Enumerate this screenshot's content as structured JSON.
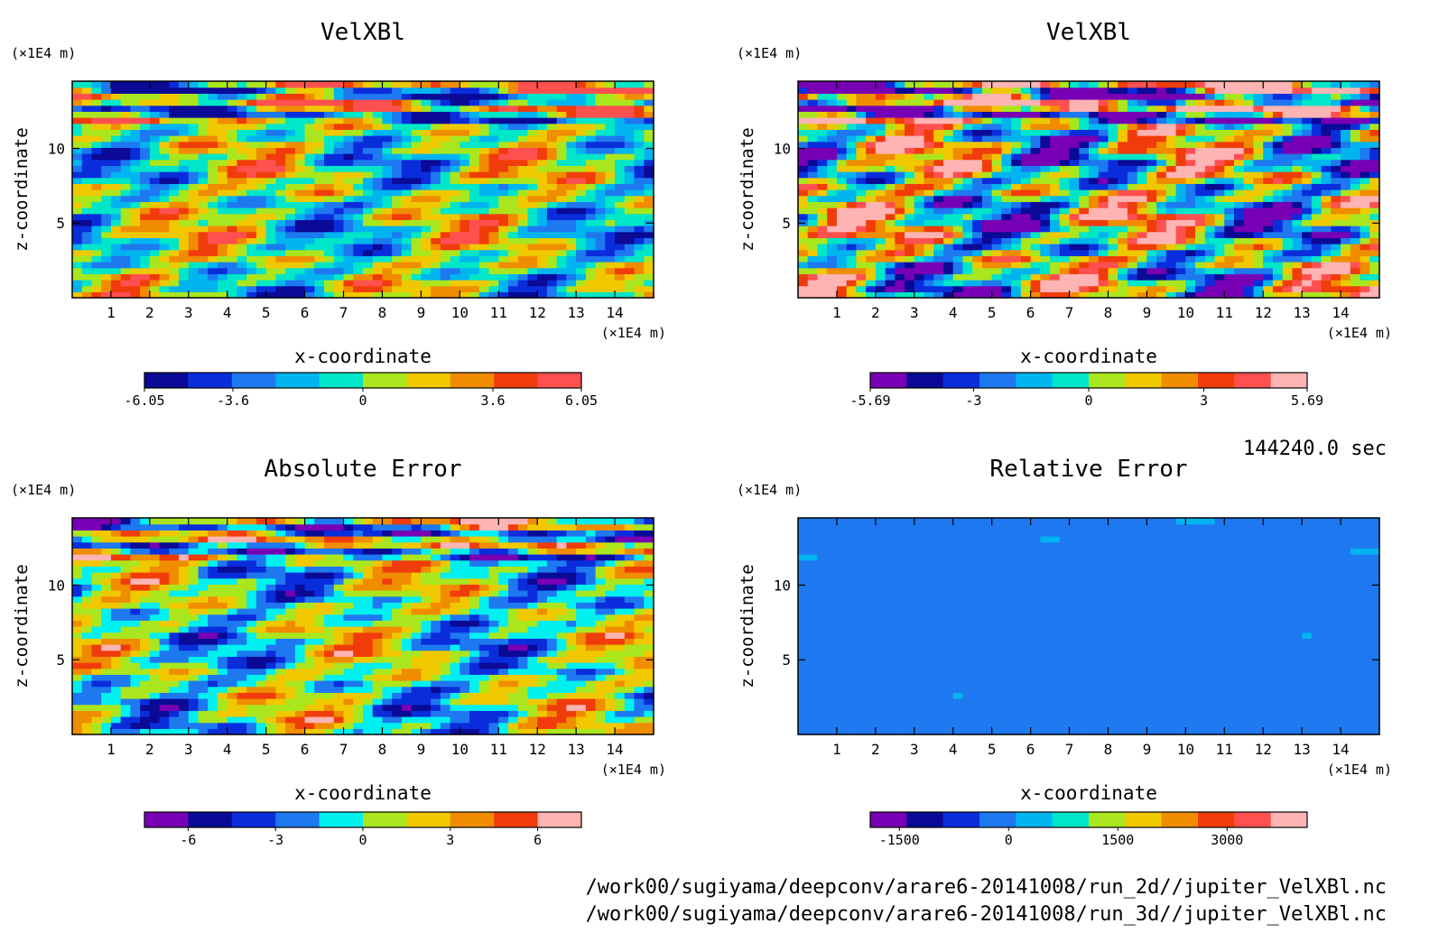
{
  "time_label": "144240.0 sec",
  "file_paths": [
    "/work00/sugiyama/deepconv/arare6-20141008/run_2d//jupiter_VelXBl.nc",
    "/work00/sugiyama/deepconv/arare6-20141008/run_3d//jupiter_VelXBl.nc"
  ],
  "chart_data": [
    {
      "type": "heatmap",
      "title": "VelXBl",
      "xlabel": "x-coordinate",
      "ylabel": "z-coordinate",
      "x_unit": "(×1E4 m)",
      "y_unit": "(×1E4 m)",
      "xlim": [
        0,
        15
      ],
      "ylim": [
        0,
        14.5
      ],
      "x_ticks": [
        1,
        2,
        3,
        4,
        5,
        6,
        7,
        8,
        9,
        10,
        11,
        12,
        13,
        14
      ],
      "y_ticks": [
        5,
        10
      ],
      "colorbar": {
        "colors": [
          "#0a0a96",
          "#0a2ddc",
          "#1e78f0",
          "#00b4f0",
          "#00e6c8",
          "#aae61e",
          "#f0c800",
          "#f08c00",
          "#f03c0a",
          "#ff5050"
        ],
        "tick_values": [
          -6.05,
          -3.6,
          0,
          3.6,
          6.05
        ],
        "tick_labels": [
          "-6.05",
          "-3.6",
          "0",
          "3.6",
          "6.05"
        ],
        "range": [
          -6.05,
          6.05
        ]
      }
    },
    {
      "type": "heatmap",
      "title": "VelXBl",
      "xlabel": "x-coordinate",
      "ylabel": "z-coordinate",
      "x_unit": "(×1E4 m)",
      "y_unit": "(×1E4 m)",
      "xlim": [
        0,
        15
      ],
      "ylim": [
        0,
        14.5
      ],
      "x_ticks": [
        1,
        2,
        3,
        4,
        5,
        6,
        7,
        8,
        9,
        10,
        11,
        12,
        13,
        14
      ],
      "y_ticks": [
        5,
        10
      ],
      "colorbar": {
        "colors": [
          "#7800b4",
          "#0a0a96",
          "#0a2ddc",
          "#1e78f0",
          "#00b4f0",
          "#00e6c8",
          "#aae61e",
          "#f0c800",
          "#f08c00",
          "#f03c0a",
          "#ff5050",
          "#ffb4b4"
        ],
        "tick_values": [
          -5.69,
          -3,
          0,
          3,
          5.69
        ],
        "tick_labels": [
          "-5.69",
          "-3",
          "0",
          "3",
          "5.69"
        ],
        "range": [
          -5.69,
          5.69
        ]
      }
    },
    {
      "type": "heatmap",
      "title": "Absolute Error",
      "xlabel": "x-coordinate",
      "ylabel": "z-coordinate",
      "x_unit": "(×1E4 m)",
      "y_unit": "(×1E4 m)",
      "xlim": [
        0,
        15
      ],
      "ylim": [
        0,
        14.5
      ],
      "x_ticks": [
        1,
        2,
        3,
        4,
        5,
        6,
        7,
        8,
        9,
        10,
        11,
        12,
        13,
        14
      ],
      "y_ticks": [
        5,
        10
      ],
      "colorbar": {
        "colors": [
          "#7800b4",
          "#0a0a96",
          "#0a2ddc",
          "#1e78f0",
          "#00f0f0",
          "#aae61e",
          "#f0c800",
          "#f08c00",
          "#f03c0a",
          "#ffb4b4"
        ],
        "tick_values": [
          -6,
          -3,
          0,
          3,
          6
        ],
        "tick_labels": [
          "-6",
          "-3",
          "0",
          "3",
          "6"
        ],
        "range": [
          -7.5,
          7.5
        ]
      }
    },
    {
      "type": "heatmap",
      "title": "Relative Error",
      "xlabel": "x-coordinate",
      "ylabel": "z-coordinate",
      "x_unit": "(×1E4 m)",
      "y_unit": "(×1E4 m)",
      "xlim": [
        0,
        15
      ],
      "ylim": [
        0,
        14.5
      ],
      "x_ticks": [
        1,
        2,
        3,
        4,
        5,
        6,
        7,
        8,
        9,
        10,
        11,
        12,
        13,
        14
      ],
      "y_ticks": [
        5,
        10
      ],
      "colorbar": {
        "colors": [
          "#7800b4",
          "#0a0a96",
          "#0a2ddc",
          "#1e78f0",
          "#00b4f0",
          "#00e6c8",
          "#aae61e",
          "#f0c800",
          "#f08c00",
          "#f03c0a",
          "#ff5050",
          "#ffb4b4"
        ],
        "tick_values": [
          -1500,
          0,
          1500,
          3000
        ],
        "tick_labels": [
          "-1500",
          "0",
          "1500",
          "3000"
        ],
        "range": [
          -1900,
          4100
        ]
      }
    }
  ]
}
